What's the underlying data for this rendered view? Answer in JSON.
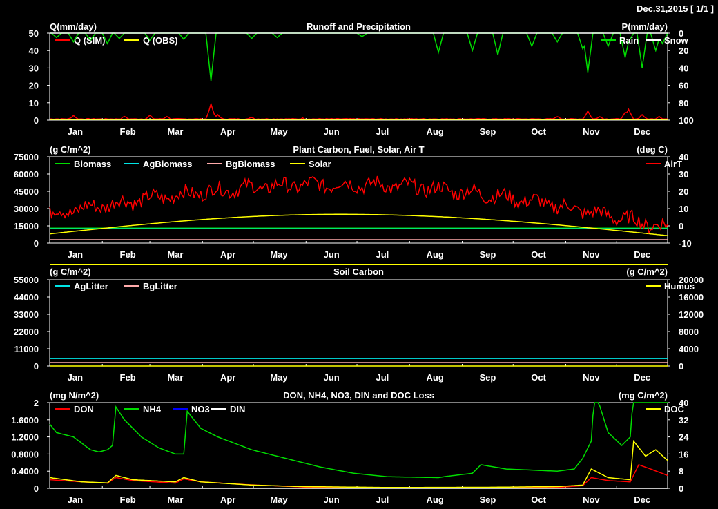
{
  "header": "Dec.31,2015 [ 1/1 ]",
  "months": [
    "Jan",
    "Feb",
    "Mar",
    "Apr",
    "May",
    "Jun",
    "Jul",
    "Aug",
    "Sep",
    "Oct",
    "Nov",
    "Dec"
  ],
  "chart_data": [
    {
      "type": "line",
      "title": "Runoff and Precipitation",
      "ylabel": "Q(mm/day)",
      "ylabel_right": "P(mm/day)",
      "ylim": [
        0,
        50
      ],
      "ylim_right": [
        100,
        0
      ],
      "yticks": [
        "0",
        "10",
        "20",
        "30",
        "40",
        "50"
      ],
      "yticks_right": [
        "100",
        "80",
        "60",
        "40",
        "20",
        "0"
      ],
      "x": "day of year 1-365",
      "series": [
        {
          "name": "Q (SIM)",
          "axis": "left",
          "color": "#ff0000",
          "baseline": 0.5,
          "peaks": [
            [
              15,
              2.5
            ],
            [
              45,
              2
            ],
            [
              60,
              2.5
            ],
            [
              70,
              2
            ],
            [
              96,
              9
            ],
            [
              100,
              3
            ],
            [
              120,
              1.5
            ],
            [
              150,
              1
            ],
            [
              300,
              2
            ],
            [
              318,
              5
            ],
            [
              325,
              2
            ],
            [
              340,
              4
            ],
            [
              342,
              6
            ],
            [
              350,
              3
            ],
            [
              360,
              2
            ]
          ]
        },
        {
          "name": "Q (OBS)",
          "axis": "left",
          "color": "#ffff00",
          "baseline": 0.4,
          "peaks": []
        },
        {
          "name": "Rain",
          "axis": "right",
          "color": "#00dd00",
          "baseline": 0,
          "peaks": [
            [
              5,
              5
            ],
            [
              15,
              10
            ],
            [
              25,
              8
            ],
            [
              35,
              12
            ],
            [
              42,
              6
            ],
            [
              60,
              8
            ],
            [
              80,
              7
            ],
            [
              96,
              55
            ],
            [
              120,
              6
            ],
            [
              135,
              5
            ],
            [
              185,
              4
            ],
            [
              230,
              22
            ],
            [
              250,
              20
            ],
            [
              265,
              25
            ],
            [
              285,
              15
            ],
            [
              300,
              10
            ],
            [
              315,
              18
            ],
            [
              318,
              45
            ],
            [
              330,
              15
            ],
            [
              340,
              28
            ],
            [
              342,
              10
            ],
            [
              350,
              40
            ],
            [
              358,
              20
            ],
            [
              362,
              12
            ]
          ]
        },
        {
          "name": "Snow",
          "axis": "right",
          "color": "#ffffff",
          "baseline": 0,
          "peaks": []
        }
      ]
    },
    {
      "type": "line",
      "title": "Plant Carbon, Fuel, Solar, Air T",
      "ylabel": "(g C/m^2)",
      "ylabel_right": "(deg C)",
      "ylim": [
        0,
        75000
      ],
      "ylim_right": [
        -10,
        40
      ],
      "yticks": [
        "0",
        "15000",
        "30000",
        "45000",
        "60000",
        "75000"
      ],
      "yticks_right": [
        "-10",
        "0",
        "10",
        "20",
        "30",
        "40"
      ],
      "series": [
        {
          "name": "Biomass",
          "axis": "left",
          "color": "#00dd00",
          "shape": "flat",
          "values": [
            13000,
            13000
          ]
        },
        {
          "name": "AgBiomass",
          "axis": "left",
          "color": "#00e5e5",
          "shape": "flat",
          "values": [
            12500,
            12500
          ]
        },
        {
          "name": "BgBiomass",
          "axis": "left",
          "color": "#ffaaaa",
          "shape": "flat",
          "values": [
            3000,
            3000
          ]
        },
        {
          "name": "Solar",
          "axis": "left",
          "color": "#ffff00",
          "shape": "seasonal",
          "values": [
            8000,
            25000,
            6500
          ]
        },
        {
          "name": "AirT",
          "axis": "right",
          "color": "#ff0000",
          "shape": "seasonal-noisy",
          "values": [
            7,
            24,
            -1
          ]
        }
      ],
      "extra_line": {
        "color": "#ffff00",
        "note": "below axis"
      }
    },
    {
      "type": "line",
      "title": "Soil Carbon",
      "ylabel": "(g C/m^2)",
      "ylabel_right": "(g C/m^2)",
      "ylim": [
        0,
        55000
      ],
      "ylim_right": [
        0,
        20000
      ],
      "yticks": [
        "0",
        "11000",
        "22000",
        "33000",
        "44000",
        "55000"
      ],
      "yticks_right": [
        "0",
        "4000",
        "8000",
        "12000",
        "16000",
        "20000"
      ],
      "series": [
        {
          "name": "AgLitter",
          "axis": "left",
          "color": "#00e5e5",
          "shape": "flat",
          "values": [
            4800,
            4800
          ]
        },
        {
          "name": "BgLitter",
          "axis": "left",
          "color": "#ffaaaa",
          "shape": "flat",
          "values": [
            2200,
            2200
          ]
        },
        {
          "name": "Humus",
          "axis": "right",
          "color": "#ffff00",
          "shape": "flat",
          "values": [
            0,
            0
          ]
        }
      ]
    },
    {
      "type": "line",
      "title": "DON, NH4, NO3, DIN and DOC Loss",
      "ylabel": "(mg N/m^2)",
      "ylabel_right": "(mg C/m^2)",
      "ylim": [
        0,
        2
      ],
      "ylim_right": [
        0,
        40
      ],
      "yticks": [
        "0",
        "0.4000",
        "0.8000",
        "1.2000",
        "1.6000",
        "2"
      ],
      "yticks_right": [
        "0",
        "8",
        "16",
        "24",
        "32",
        "40"
      ],
      "series": [
        {
          "name": "DON",
          "axis": "left",
          "color": "#ff0000",
          "points": [
            [
              1,
              0.2
            ],
            [
              20,
              0.15
            ],
            [
              35,
              0.12
            ],
            [
              40,
              0.25
            ],
            [
              50,
              0.18
            ],
            [
              75,
              0.12
            ],
            [
              80,
              0.22
            ],
            [
              90,
              0.15
            ],
            [
              120,
              0.08
            ],
            [
              150,
              0.03
            ],
            [
              200,
              0.01
            ],
            [
              260,
              0.01
            ],
            [
              300,
              0.02
            ],
            [
              315,
              0.06
            ],
            [
              320,
              0.25
            ],
            [
              330,
              0.18
            ],
            [
              343,
              0.15
            ],
            [
              348,
              0.55
            ],
            [
              355,
              0.45
            ],
            [
              365,
              0.3
            ]
          ]
        },
        {
          "name": "NH4",
          "axis": "left",
          "color": "#00dd00",
          "points": [
            [
              1,
              1.5
            ],
            [
              5,
              1.3
            ],
            [
              15,
              1.2
            ],
            [
              20,
              1.05
            ],
            [
              25,
              0.9
            ],
            [
              30,
              0.85
            ],
            [
              35,
              0.9
            ],
            [
              38,
              1.0
            ],
            [
              40,
              1.9
            ],
            [
              45,
              1.6
            ],
            [
              55,
              1.2
            ],
            [
              65,
              0.95
            ],
            [
              75,
              0.8
            ],
            [
              80,
              0.8
            ],
            [
              82,
              1.8
            ],
            [
              90,
              1.4
            ],
            [
              100,
              1.2
            ],
            [
              120,
              0.9
            ],
            [
              140,
              0.7
            ],
            [
              160,
              0.5
            ],
            [
              180,
              0.35
            ],
            [
              200,
              0.27
            ],
            [
              230,
              0.25
            ],
            [
              235,
              0.28
            ],
            [
              250,
              0.35
            ],
            [
              255,
              0.55
            ],
            [
              270,
              0.45
            ],
            [
              300,
              0.4
            ],
            [
              310,
              0.45
            ],
            [
              315,
              0.7
            ],
            [
              320,
              1.1
            ],
            [
              322,
              2.3
            ],
            [
              330,
              1.3
            ],
            [
              338,
              1.0
            ],
            [
              343,
              1.2
            ],
            [
              345,
              2.3
            ]
          ]
        },
        {
          "name": "NO3",
          "axis": "left",
          "color": "#0000ff",
          "shape": "flat",
          "values": [
            0.005,
            0.005
          ]
        },
        {
          "name": "DIN",
          "axis": "left",
          "color": "#ffffff",
          "shape": "flat",
          "values": [
            0,
            0
          ]
        },
        {
          "name": "DOC",
          "axis": "right",
          "color": "#ffff00",
          "points": [
            [
              1,
              5
            ],
            [
              20,
              3
            ],
            [
              35,
              2.5
            ],
            [
              40,
              6
            ],
            [
              50,
              4
            ],
            [
              75,
              3
            ],
            [
              80,
              5
            ],
            [
              90,
              3
            ],
            [
              120,
              1.5
            ],
            [
              150,
              0.8
            ],
            [
              200,
              0.4
            ],
            [
              260,
              0.5
            ],
            [
              300,
              0.8
            ],
            [
              315,
              1.5
            ],
            [
              320,
              9
            ],
            [
              330,
              5
            ],
            [
              343,
              4
            ],
            [
              345,
              22
            ],
            [
              352,
              15
            ],
            [
              358,
              18
            ],
            [
              365,
              13
            ]
          ]
        }
      ]
    }
  ]
}
